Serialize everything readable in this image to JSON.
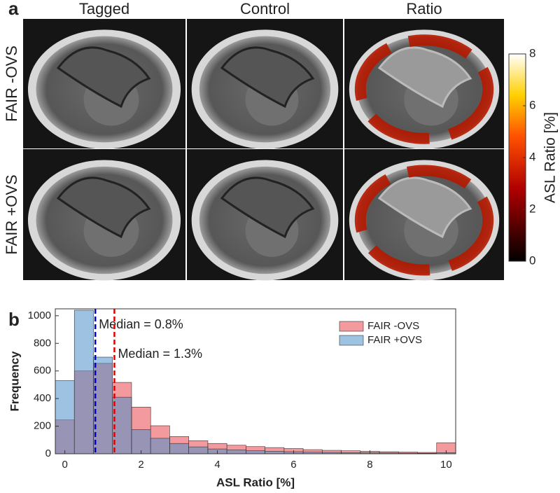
{
  "panel_a": {
    "label": "a",
    "columns": [
      "Tagged",
      "Control",
      "Ratio"
    ],
    "rows": [
      "FAIR -OVS",
      "FAIR +OVS"
    ],
    "colorbar": {
      "label": "ASL Ratio [%]",
      "lim": [
        0,
        8
      ],
      "ticks": [
        0,
        2,
        4,
        6,
        8
      ]
    }
  },
  "chart_data": {
    "type": "histogram",
    "panel_label": "b",
    "xlabel": "ASL Ratio [%]",
    "ylabel": "Frequency",
    "bins": [
      -0.25,
      0.25,
      0.75,
      1.25,
      1.75,
      2.25,
      2.75,
      3.25,
      3.75,
      4.25,
      4.75,
      5.25,
      5.75,
      6.25,
      6.75,
      7.25,
      7.75,
      8.25,
      8.75,
      9.25,
      9.75,
      10.25
    ],
    "series": [
      {
        "name": "FAIR -OVS",
        "color": "#e8474f",
        "values": [
          245,
          600,
          655,
          517,
          338,
          203,
          125,
          95,
          75,
          62,
          52,
          45,
          38,
          30,
          25,
          22,
          18,
          15,
          12,
          10,
          80
        ]
      },
      {
        "name": "FAIR +OVS",
        "color": "#4f8fc8",
        "values": [
          530,
          1040,
          700,
          410,
          175,
          112,
          75,
          50,
          35,
          28,
          22,
          18,
          15,
          12,
          10,
          8,
          7,
          6,
          5,
          4,
          8
        ]
      }
    ],
    "medians": [
      {
        "x": 0.8,
        "label": "Median = 0.8%",
        "color": "#0000cc"
      },
      {
        "x": 1.3,
        "label": "Median = 1.3%",
        "color": "#dd0000"
      }
    ],
    "xlim": [
      -0.25,
      10.25
    ],
    "xticks": [
      0,
      2,
      4,
      6,
      8,
      10
    ],
    "ylim": [
      0,
      1050
    ],
    "yticks": [
      0,
      200,
      400,
      600,
      800,
      1000
    ],
    "legend": "northeast"
  }
}
